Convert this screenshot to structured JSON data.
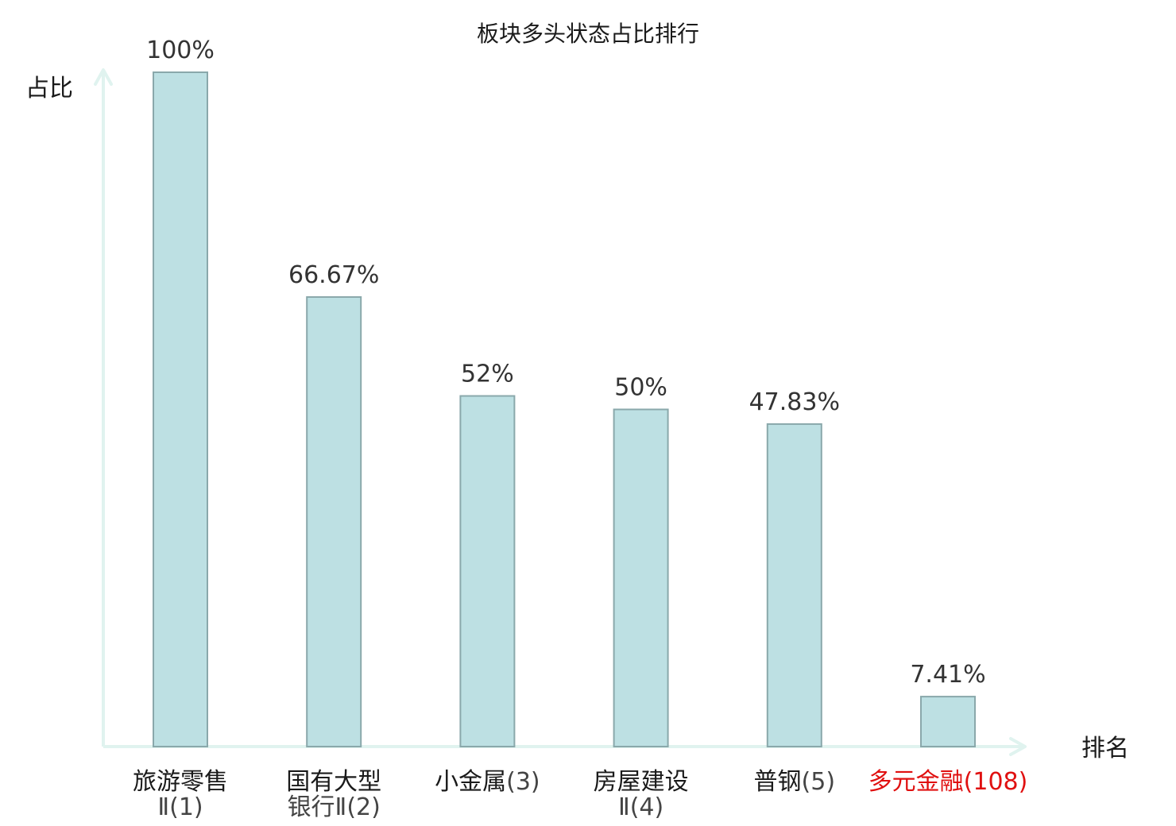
{
  "chart_data": {
    "type": "bar",
    "title": "板块多头状态占比排行",
    "ylabel": "占比",
    "xlabel": "排名",
    "ylim": [
      0,
      100
    ],
    "grid": false,
    "categories": [
      {
        "name": "旅游零售",
        "rank": "Ⅱ(1)",
        "highlight": false
      },
      {
        "name": "国有大型",
        "rank": "银行Ⅱ(2)",
        "highlight": false
      },
      {
        "name": "小金属",
        "rank": "(3)",
        "highlight": false
      },
      {
        "name": "房屋建设",
        "rank": "Ⅱ(4)",
        "highlight": false
      },
      {
        "name": "普钢",
        "rank": "(5)",
        "highlight": false
      },
      {
        "name": "多元金融",
        "rank": "(108)",
        "highlight": true
      }
    ],
    "values": [
      100,
      66.67,
      52,
      50,
      47.83,
      7.41
    ],
    "value_labels": [
      "100%",
      "66.67%",
      "52%",
      "50%",
      "47.83%",
      "7.41%"
    ]
  },
  "colors": {
    "bar_fill": "#bde0e3",
    "bar_stroke": "#8aa8ab",
    "axis": "#e0f3ef",
    "value_text": "#333333",
    "category_text": "#1a1a1a",
    "rank_text": "#444444",
    "highlight_text": "#e01010"
  }
}
